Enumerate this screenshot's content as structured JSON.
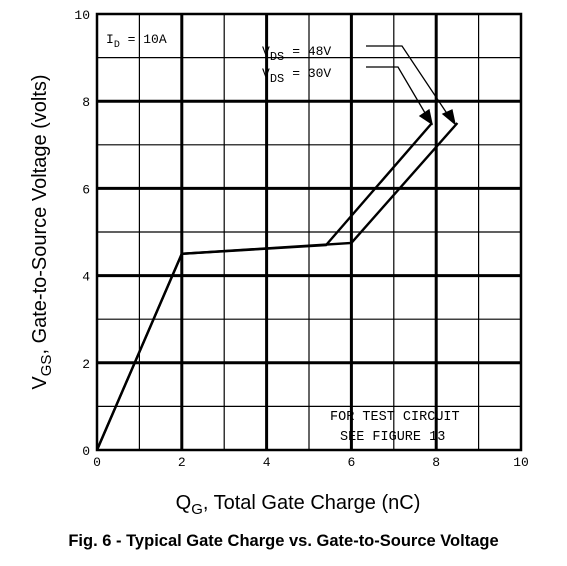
{
  "chart_data": {
    "type": "line",
    "title": "",
    "ylabel_main": "V",
    "ylabel_sub": "GS",
    "ylabel_rest": ", Gate-to-Source Voltage (volts)",
    "xlabel_main": "Q",
    "xlabel_sub": "G",
    "xlabel_rest": ", Total Gate Charge (nC)",
    "xlim": [
      0,
      10
    ],
    "ylim": [
      0,
      10
    ],
    "xticks": [
      "0",
      "2",
      "4",
      "6",
      "8",
      "10"
    ],
    "yticks": [
      "0",
      "2",
      "4",
      "6",
      "8",
      "10"
    ],
    "grid": true,
    "series": [
      {
        "name": "VDS = 48V",
        "x": [
          0,
          2.0,
          6.0,
          8.5
        ],
        "y": [
          0,
          4.5,
          4.75,
          7.5
        ]
      },
      {
        "name": "VDS = 30V",
        "x": [
          0,
          2.0,
          5.4,
          7.9
        ],
        "y": [
          0,
          4.5,
          4.7,
          7.5
        ]
      }
    ],
    "annotations": {
      "id_label_main": "I",
      "id_label_sub": "D",
      "id_label_rest": " = 10A",
      "vds_main": "V",
      "vds_sub": "DS",
      "vds_48": "=   48V",
      "vds_30": "=   30V",
      "test_line1": "FOR TEST CIRCUIT",
      "test_line2": "SEE FIGURE 13"
    }
  },
  "caption": "Fig. 6 - Typical Gate Charge vs. Gate-to-Source Voltage"
}
